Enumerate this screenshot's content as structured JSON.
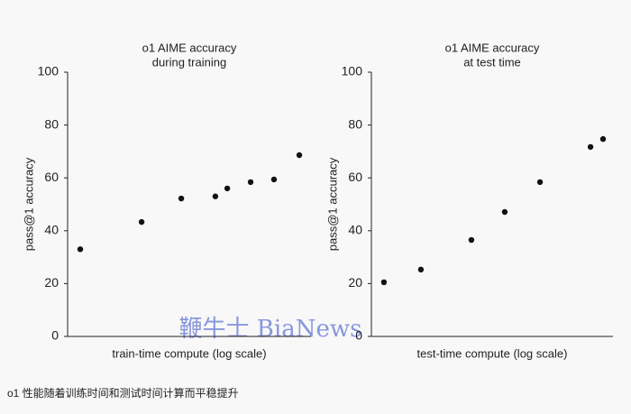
{
  "chart_data": [
    {
      "type": "scatter",
      "title": [
        "o1 AIME accuracy",
        "during training"
      ],
      "xlabel": "train-time compute (log scale)",
      "ylabel": "pass@1 accuracy",
      "x": [
        5.2,
        30.4,
        46.7,
        60.7,
        65.6,
        75.2,
        84.8,
        95.2
      ],
      "values": [
        33,
        43.3,
        52.2,
        53,
        56,
        58.4,
        59.4,
        68.6
      ],
      "color": "#111111",
      "xlim": [
        0,
        100
      ],
      "ylim": [
        0,
        100
      ],
      "yticks": [
        0,
        20,
        40,
        60,
        80,
        100
      ]
    },
    {
      "type": "scatter",
      "title": [
        "o1 AIME accuracy",
        "at test time"
      ],
      "xlabel": "test-time compute (log scale)",
      "ylabel": "pass@1 accuracy",
      "x": [
        5.2,
        20.5,
        41.4,
        55.2,
        69.8,
        90.7,
        95.9
      ],
      "values": [
        20.5,
        25.3,
        36.5,
        47.1,
        58.4,
        71.7,
        74.7
      ],
      "color": "#111111",
      "xlim": [
        0,
        100
      ],
      "ylim": [
        0,
        100
      ],
      "yticks": [
        0,
        20,
        40,
        60,
        80,
        100
      ]
    }
  ],
  "watermark": "鞭牛士 BiaNews",
  "caption": "o1 性能随着训练时间和测试时间计算而平稳提升"
}
